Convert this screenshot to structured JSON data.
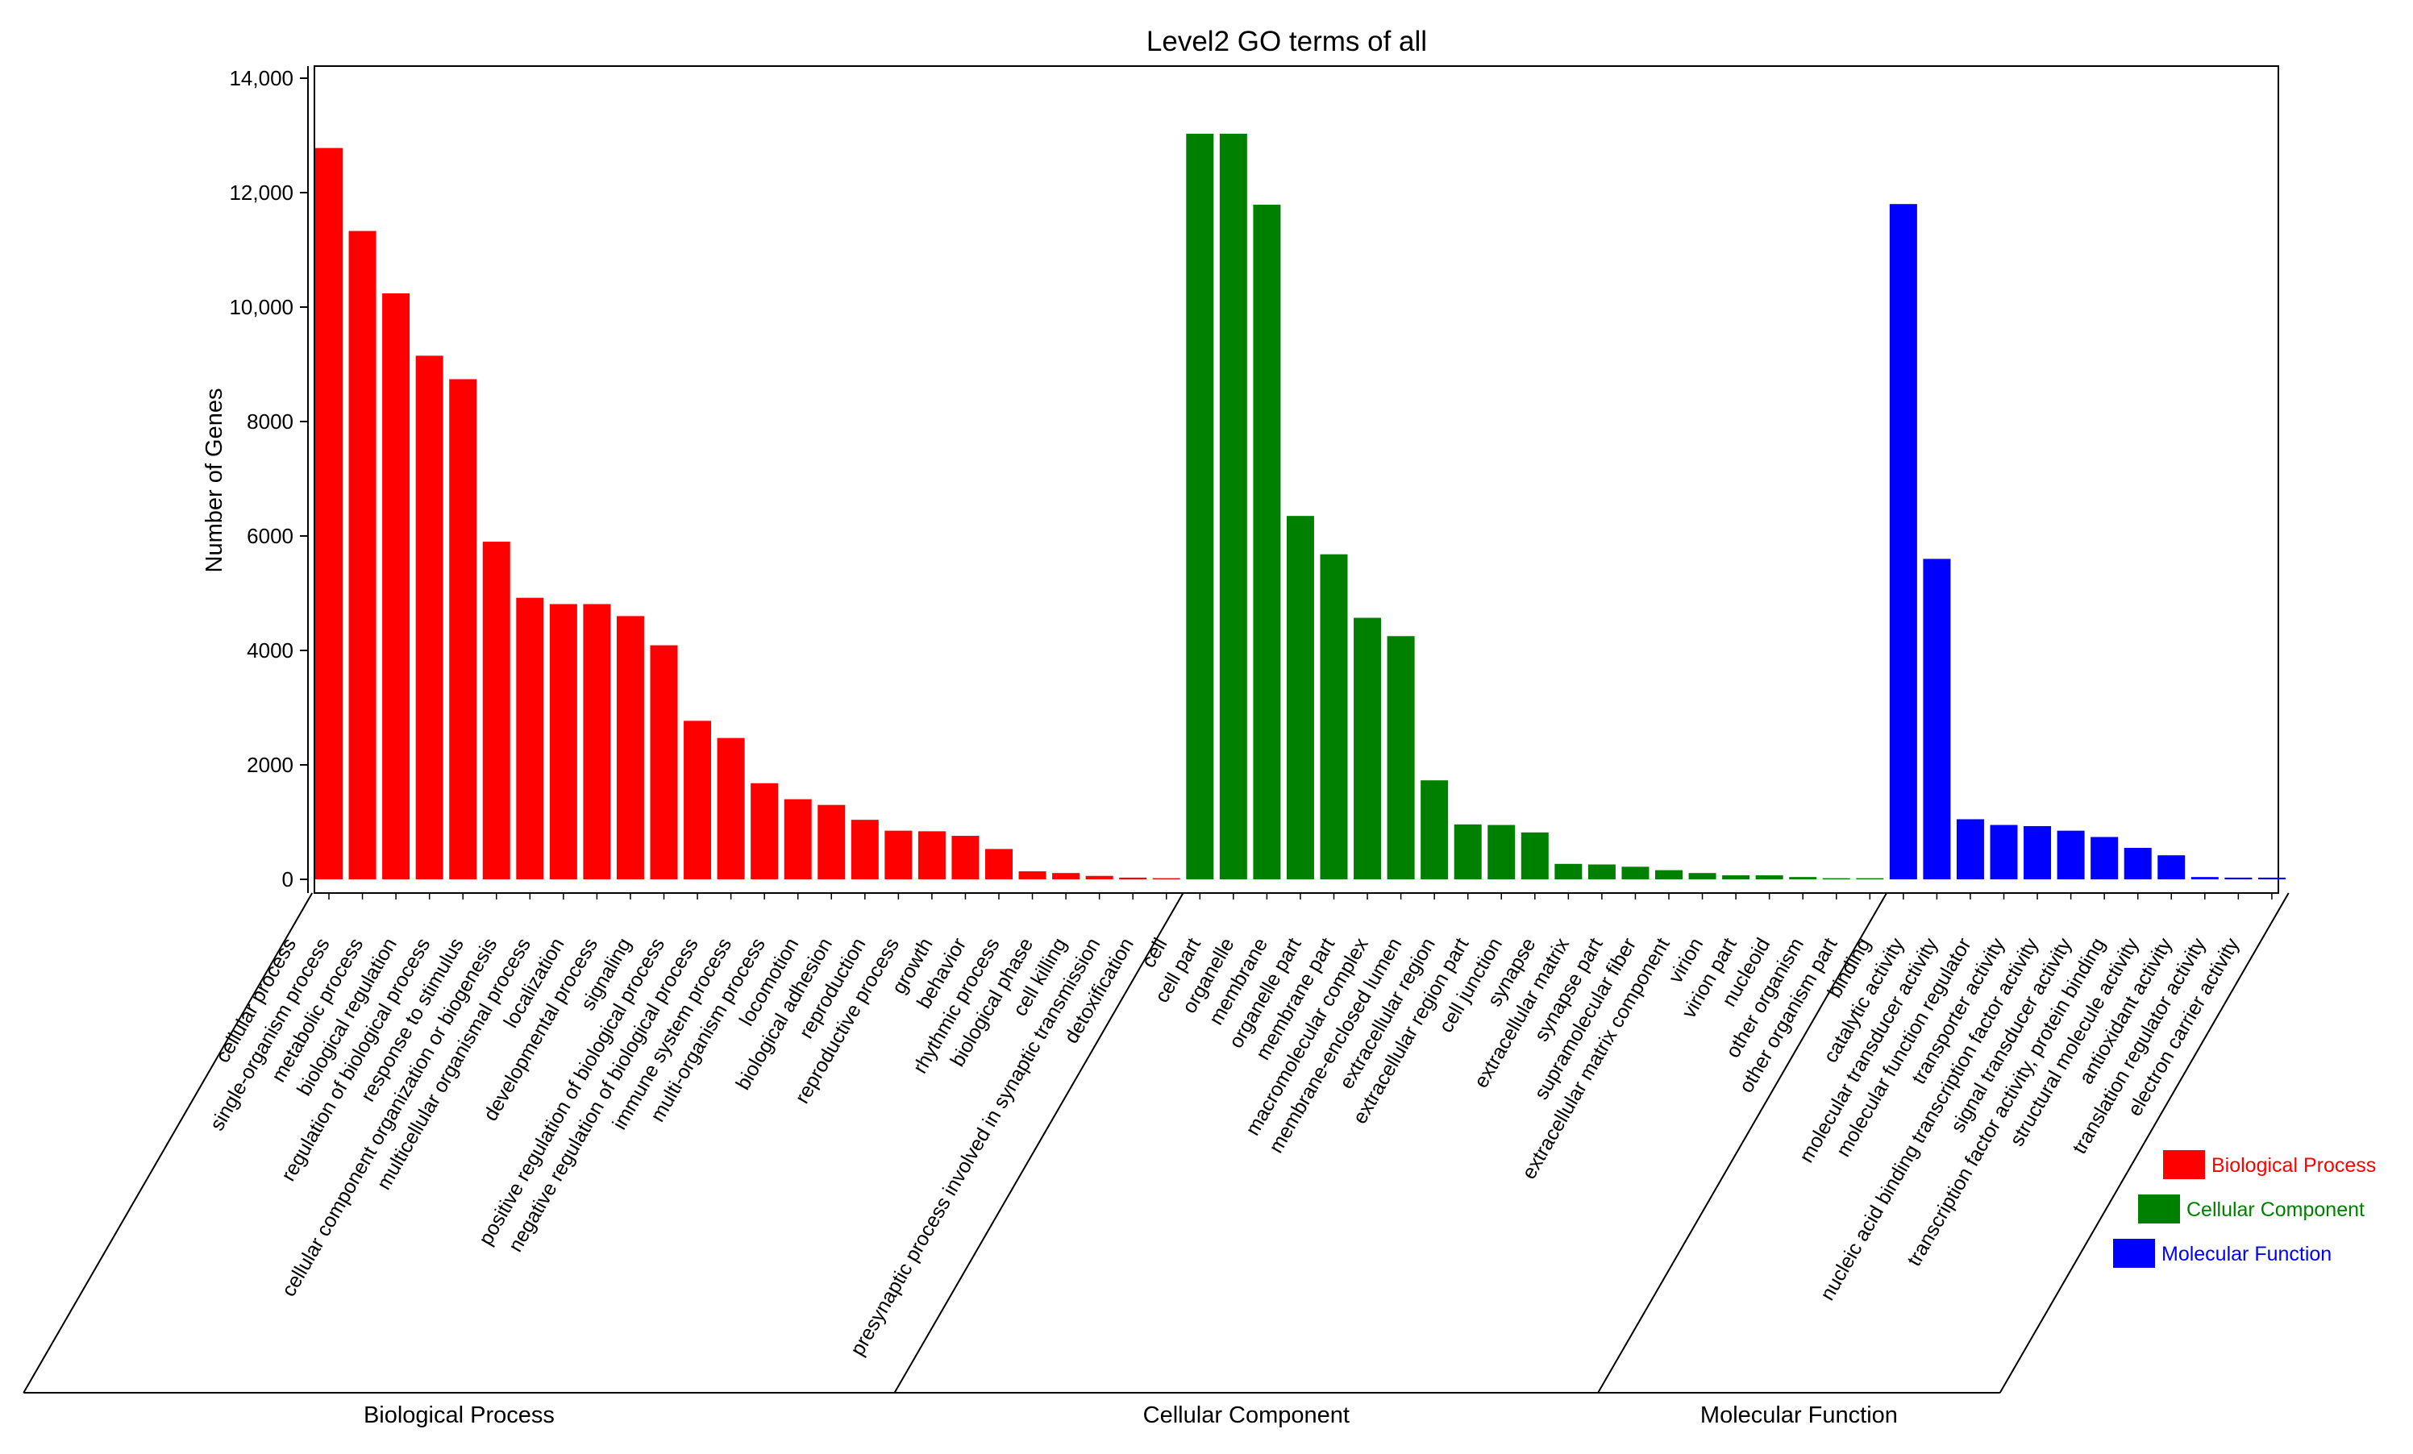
{
  "chart_data": {
    "type": "bar",
    "title": "Level2 GO terms of all",
    "ylabel": "Number of Genes",
    "xlabel": "",
    "ylim": [
      0,
      14000
    ],
    "yticks": [
      {
        "value": 0,
        "label": "0"
      },
      {
        "value": 2000,
        "label": "2000"
      },
      {
        "value": 4000,
        "label": "4000"
      },
      {
        "value": 6000,
        "label": "6000"
      },
      {
        "value": 8000,
        "label": "8000"
      },
      {
        "value": 10000,
        "label": "10,000"
      },
      {
        "value": 12000,
        "label": "12,000"
      },
      {
        "value": 14000,
        "label": "14,000"
      }
    ],
    "legend_position": "bottom-right",
    "groups": [
      {
        "name": "Biological Process",
        "color": "#ff0000",
        "categories": [
          "cellular process",
          "single-organism process",
          "metabolic process",
          "biological regulation",
          "regulation of biological process",
          "response to stimulus",
          "cellular component organization or biogenesis",
          "multicellular organismal process",
          "localization",
          "developmental process",
          "signaling",
          "positive regulation of biological process",
          "negative regulation of biological process",
          "immune system process",
          "multi-organism process",
          "locomotion",
          "biological adhesion",
          "reproduction",
          "reproductive process",
          "growth",
          "behavior",
          "rhythmic process",
          "biological phase",
          "cell killing",
          "presynaptic process involved in synaptic transmission",
          "detoxification"
        ],
        "values": [
          12780,
          11330,
          10240,
          9150,
          8740,
          5900,
          4920,
          4810,
          4810,
          4600,
          4090,
          2770,
          2470,
          1680,
          1400,
          1300,
          1040,
          850,
          840,
          760,
          530,
          140,
          110,
          60,
          30,
          20
        ]
      },
      {
        "name": "Cellular Component",
        "color": "#008000",
        "categories": [
          "cell",
          "cell part",
          "organelle",
          "membrane",
          "organelle part",
          "membrane part",
          "macromolecular complex",
          "membrane-enclosed lumen",
          "extracellular region",
          "extracellular region part",
          "cell junction",
          "synapse",
          "extracellular matrix",
          "synapse part",
          "supramolecular fiber",
          "extracellular matrix component",
          "virion",
          "virion part",
          "nucleoid",
          "other organism",
          "other organism part"
        ],
        "values": [
          13030,
          13030,
          11790,
          6350,
          5680,
          4570,
          4250,
          1730,
          960,
          950,
          820,
          270,
          260,
          220,
          160,
          110,
          70,
          70,
          40,
          20,
          20
        ]
      },
      {
        "name": "Molecular Function",
        "color": "#0000ff",
        "categories": [
          "binding",
          "catalytic activity",
          "molecular transducer activity",
          "molecular function regulator",
          "transporter activity",
          "nucleic acid binding transcription factor activity",
          "signal transducer activity",
          "transcription factor activity, protein binding",
          "structural molecule activity",
          "antioxidant activity",
          "translation regulator activity",
          "electron carrier activity"
        ],
        "values": [
          11800,
          5600,
          1050,
          950,
          930,
          850,
          740,
          550,
          420,
          40,
          30,
          30
        ]
      }
    ]
  }
}
